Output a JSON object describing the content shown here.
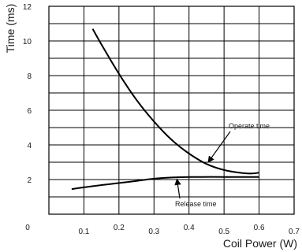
{
  "chart_data": {
    "type": "line",
    "xlabel": "Coil Power (W)",
    "ylabel": "Time (ms)",
    "xlim": [
      0,
      0.7
    ],
    "ylim": [
      0,
      12
    ],
    "grid": true,
    "x_ticks": [
      "0",
      "0.1",
      "0.2",
      "0.3",
      "0.4",
      "0.5",
      "0.6",
      "0.7"
    ],
    "y_ticks": [
      "2",
      "4",
      "6",
      "8",
      "10",
      "12"
    ],
    "series": [
      {
        "name": "Operate time",
        "x": [
          0.125,
          0.15,
          0.2,
          0.25,
          0.3,
          0.35,
          0.4,
          0.45,
          0.5,
          0.55,
          0.58,
          0.6
        ],
        "y": [
          10.7,
          9.8,
          8.1,
          6.6,
          5.35,
          4.3,
          3.5,
          2.9,
          2.55,
          2.38,
          2.35,
          2.4
        ]
      },
      {
        "name": "Release time",
        "x": [
          0.065,
          0.1,
          0.15,
          0.2,
          0.25,
          0.3,
          0.35,
          0.4,
          0.5,
          0.6
        ],
        "y": [
          1.45,
          1.55,
          1.68,
          1.8,
          1.92,
          2.05,
          2.12,
          2.15,
          2.15,
          2.15
        ]
      }
    ],
    "annotations": [
      {
        "text": "Operate time",
        "series": "Operate time",
        "x": 0.45,
        "y": 2.9
      },
      {
        "text": "Release time",
        "series": "Release time",
        "x": 0.37,
        "y": 2.12
      }
    ]
  }
}
